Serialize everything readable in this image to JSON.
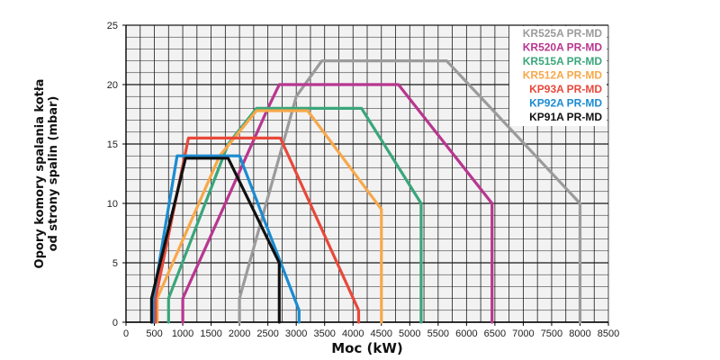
{
  "chart_data": {
    "type": "line",
    "title": "",
    "xlabel": "Moc (kW)",
    "ylabel_lines": [
      "Opory komory spalania kotła",
      "od strony spalin (mbar)"
    ],
    "xlim": [
      0,
      8500
    ],
    "ylim": [
      0,
      25
    ],
    "x_ticks": [
      0,
      500,
      1000,
      1500,
      2000,
      2500,
      3000,
      3500,
      4000,
      4500,
      5000,
      5500,
      6000,
      6500,
      7000,
      7500,
      8000,
      8500
    ],
    "y_ticks": [
      0,
      5,
      10,
      15,
      20,
      25
    ],
    "grid": true,
    "legend_position": "top-right",
    "series": [
      {
        "name": "KR525A PR-MD",
        "color": "#9b9b9b",
        "points": [
          [
            2000,
            0
          ],
          [
            2000,
            2
          ],
          [
            3000,
            19
          ],
          [
            3450,
            22
          ],
          [
            5650,
            22
          ],
          [
            8000,
            10
          ],
          [
            8000,
            0
          ]
        ]
      },
      {
        "name": "KR520A PR-MD",
        "color": "#b8368f",
        "points": [
          [
            1000,
            0
          ],
          [
            1000,
            2
          ],
          [
            2500,
            18
          ],
          [
            2700,
            20
          ],
          [
            4800,
            20
          ],
          [
            6450,
            10
          ],
          [
            6450,
            0
          ]
        ]
      },
      {
        "name": "KR515A PR-MD",
        "color": "#3aa67b",
        "points": [
          [
            750,
            0
          ],
          [
            750,
            2
          ],
          [
            1800,
            15
          ],
          [
            2300,
            18
          ],
          [
            4150,
            18
          ],
          [
            5200,
            10
          ],
          [
            5200,
            0
          ]
        ]
      },
      {
        "name": "KR512A PR-MD",
        "color": "#f7a84a",
        "points": [
          [
            550,
            0
          ],
          [
            550,
            2
          ],
          [
            1650,
            14
          ],
          [
            2300,
            17.8
          ],
          [
            3200,
            17.8
          ],
          [
            4500,
            9.5
          ],
          [
            4500,
            0
          ]
        ]
      },
      {
        "name": "KP93A PR-MD",
        "color": "#e8483a",
        "points": [
          [
            520,
            0
          ],
          [
            520,
            2
          ],
          [
            1100,
            15.5
          ],
          [
            2720,
            15.5
          ],
          [
            4100,
            1
          ],
          [
            4100,
            0
          ]
        ]
      },
      {
        "name": "KP92A PR-MD",
        "color": "#1b8bd1",
        "points": [
          [
            480,
            0
          ],
          [
            480,
            2
          ],
          [
            900,
            14
          ],
          [
            2000,
            14
          ],
          [
            3050,
            1
          ],
          [
            3050,
            0
          ]
        ]
      },
      {
        "name": "KP91A PR-MD",
        "color": "#111111",
        "points": [
          [
            450,
            0
          ],
          [
            450,
            2
          ],
          [
            1050,
            13.8
          ],
          [
            1800,
            13.8
          ],
          [
            2700,
            5
          ],
          [
            2700,
            0
          ]
        ]
      }
    ]
  }
}
